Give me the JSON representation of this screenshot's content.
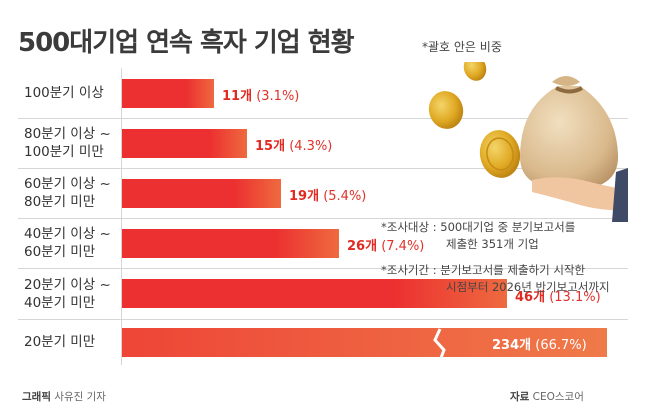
{
  "header": {
    "title": "500대기업 연속 흑자 기업 현황",
    "note": "*괄호 안은 비중"
  },
  "chart_data": {
    "type": "bar",
    "orientation": "horizontal",
    "categories": [
      "100분기 이상",
      "80분기 이상 ~\n100분기 미만",
      "60분기 이상 ~\n80분기 미만",
      "40분기 이상 ~\n60분기 미만",
      "20분기 이상 ~\n40분기 미만",
      "20분기 미만"
    ],
    "values": [
      11,
      15,
      19,
      26,
      46,
      234
    ],
    "value_labels": [
      "11개",
      "15개",
      "19개",
      "26개",
      "46개",
      "234개"
    ],
    "share_labels": [
      "(3.1%)",
      "(4.3%)",
      "(5.4%)",
      "(7.4%)",
      "(13.1%)",
      "(66.7%)"
    ],
    "axis_break_on": "20분기 미만",
    "bar_color": "#ec2f30"
  },
  "notes": {
    "subject_line1": "*조사대상 : 500대기업 중 분기보고서를",
    "subject_line2": "제출한 351개 기업",
    "period_line1": "*조사기간 : 분기보고서를 제출하기 시작한",
    "period_line2": "시점부터 2026년 반기보고서까지"
  },
  "footer": {
    "graphic_label": "그래픽",
    "graphic_author": "사유진 기자",
    "source_label": "자료",
    "source_name": "CEO스코어"
  },
  "illustration": {
    "name": "money-bag-with-coins"
  }
}
